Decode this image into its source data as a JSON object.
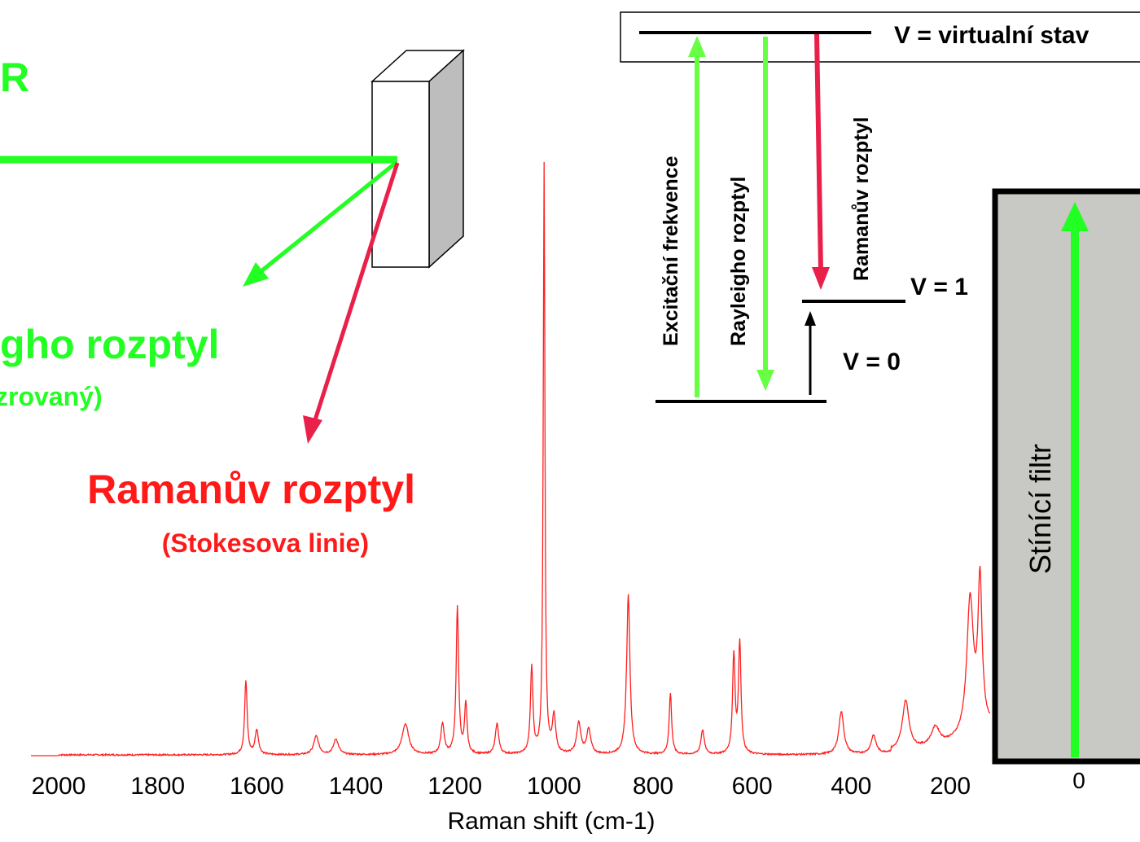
{
  "labels": {
    "laser_fragment": "R",
    "rayleigh_title": "gho rozptyl",
    "rayleigh_subtitle": "zrovaný)",
    "raman_title": "Ramanův rozptyl",
    "raman_subtitle": "(Stokesova linie)",
    "virtual_state": "V = virtualní stav",
    "v1": "V = 1",
    "v0": "V = 0",
    "excitation": "Excitační frekvence",
    "rayleigh_arrow": "Rayleigho rozptyl",
    "raman_arrow": "Ramanův rozptyl",
    "filter": "Stínící filtr",
    "filter_zero": "0",
    "xlabel": "Raman shift (cm-1)"
  },
  "colors": {
    "green": "#22ff22",
    "light_green": "#66ff44",
    "red": "#ff1a1a",
    "crimson": "#e8204a",
    "spectrum": "#ff2020",
    "filter_fill": "#c8c8c4",
    "black": "#000000"
  },
  "chart_data": {
    "type": "line",
    "xlabel": "Raman shift (cm-1)",
    "x_ticks": [
      2000,
      1800,
      1600,
      1400,
      1200,
      1000,
      800,
      600,
      400,
      200
    ],
    "x_reversed": true,
    "xlim": [
      2000,
      120
    ],
    "ylim": [
      0,
      100
    ],
    "peaks": [
      {
        "x": 1622,
        "h": 12,
        "w": 3
      },
      {
        "x": 1600,
        "h": 4,
        "w": 4
      },
      {
        "x": 1480,
        "h": 3,
        "w": 6
      },
      {
        "x": 1440,
        "h": 2.5,
        "w": 6
      },
      {
        "x": 1300,
        "h": 5,
        "w": 8
      },
      {
        "x": 1225,
        "h": 5,
        "w": 4
      },
      {
        "x": 1195,
        "h": 24,
        "w": 3
      },
      {
        "x": 1178,
        "h": 8,
        "w": 3
      },
      {
        "x": 1115,
        "h": 5,
        "w": 4
      },
      {
        "x": 1045,
        "h": 14,
        "w": 3
      },
      {
        "x": 1020,
        "h": 96,
        "w": 2
      },
      {
        "x": 1000,
        "h": 6,
        "w": 4
      },
      {
        "x": 950,
        "h": 5,
        "w": 5
      },
      {
        "x": 930,
        "h": 4,
        "w": 5
      },
      {
        "x": 850,
        "h": 26,
        "w": 4
      },
      {
        "x": 765,
        "h": 10,
        "w": 3
      },
      {
        "x": 700,
        "h": 4,
        "w": 4
      },
      {
        "x": 637,
        "h": 16,
        "w": 3
      },
      {
        "x": 625,
        "h": 18,
        "w": 3
      },
      {
        "x": 420,
        "h": 7,
        "w": 6
      },
      {
        "x": 355,
        "h": 3,
        "w": 6
      },
      {
        "x": 290,
        "h": 8,
        "w": 8
      },
      {
        "x": 230,
        "h": 3,
        "w": 10
      },
      {
        "x": 160,
        "h": 22,
        "w": 8
      },
      {
        "x": 140,
        "h": 24,
        "w": 5
      }
    ]
  }
}
